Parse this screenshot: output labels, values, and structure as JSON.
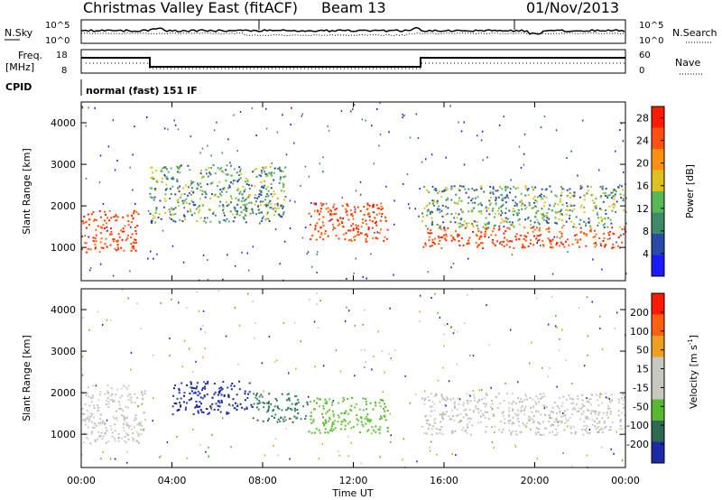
{
  "header": {
    "station": "Christmas Valley East (fitACF)",
    "beam": "Beam 13",
    "date": "01/Nov/2013"
  },
  "top_panels": {
    "nsky_label": "N.Sky",
    "nsearch_label": "N.Search",
    "noise_ticks": [
      "10^5",
      "10^0"
    ],
    "freq_label": "Freq.",
    "freq_unit": "[MHz]",
    "freq_ticks": [
      "18",
      "8"
    ],
    "nave_label": "Nave",
    "nave_ticks": [
      "60",
      "0"
    ],
    "cpid_label": "CPID",
    "cpid_text": "normal (fast) 151 IF"
  },
  "chart_data": [
    {
      "type": "heatmap",
      "panel": "power",
      "title": "",
      "xlabel": "",
      "ylabel": "Slant Range [km]",
      "x_ticks": [
        "00:00",
        "04:00",
        "08:00",
        "12:00",
        "16:00",
        "20:00",
        "00:00"
      ],
      "x_range_hours": [
        0,
        24
      ],
      "y_ticks": [
        1000,
        2000,
        3000,
        4000
      ],
      "ylim": [
        200,
        4500
      ],
      "colorbar": {
        "label": "Power [dB]",
        "ticks": [
          4,
          8,
          12,
          16,
          20,
          24,
          28
        ],
        "range": [
          0,
          30
        ],
        "colors": [
          "#1a1aff",
          "#2a4aa8",
          "#3f8a6a",
          "#58b858",
          "#e0c020",
          "#ff9010",
          "#ff5010",
          "#ff1a00"
        ]
      },
      "features": [
        {
          "t0": 0.0,
          "t1": 2.5,
          "r0": 900,
          "r1": 1900,
          "level": "high"
        },
        {
          "t0": 3.0,
          "t1": 9.0,
          "r0": 1600,
          "r1": 3000,
          "level": "mid"
        },
        {
          "t0": 10.0,
          "t1": 13.5,
          "r0": 1150,
          "r1": 2100,
          "level": "high"
        },
        {
          "t0": 15.0,
          "t1": 24.0,
          "r0": 1000,
          "r1": 1500,
          "level": "high"
        },
        {
          "t0": 15.0,
          "t1": 24.0,
          "r0": 1500,
          "r1": 2500,
          "level": "mid"
        }
      ]
    },
    {
      "type": "heatmap",
      "panel": "velocity",
      "title": "",
      "xlabel": "Time UT",
      "ylabel": "Slant Range [km]",
      "x_ticks": [
        "00:00",
        "04:00",
        "08:00",
        "12:00",
        "16:00",
        "20:00",
        "00:00"
      ],
      "x_range_hours": [
        0,
        24
      ],
      "y_ticks": [
        1000,
        2000,
        3000,
        4000
      ],
      "ylim": [
        200,
        4500
      ],
      "colorbar": {
        "label": "Velocity [m s-1]",
        "ticks": [
          200,
          100,
          50,
          15,
          -15,
          -50,
          -100,
          -200
        ],
        "range": [
          -250,
          250
        ],
        "colors": [
          "#1a2aa8",
          "#2d6a50",
          "#58b830",
          "#c8c8c0",
          "#c8c8c0",
          "#f0a020",
          "#ff6010",
          "#ff1a00"
        ]
      },
      "features": [
        {
          "t0": 0.0,
          "t1": 2.8,
          "r0": 800,
          "r1": 2200,
          "level": "grey"
        },
        {
          "t0": 4.0,
          "t1": 7.5,
          "r0": 1500,
          "r1": 2300,
          "level": "blue"
        },
        {
          "t0": 7.5,
          "t1": 10.0,
          "r0": 1300,
          "r1": 2000,
          "level": "teal"
        },
        {
          "t0": 10.0,
          "t1": 13.5,
          "r0": 1050,
          "r1": 1900,
          "level": "green"
        },
        {
          "t0": 15.0,
          "t1": 24.0,
          "r0": 1000,
          "r1": 2000,
          "level": "grey"
        }
      ]
    }
  ]
}
